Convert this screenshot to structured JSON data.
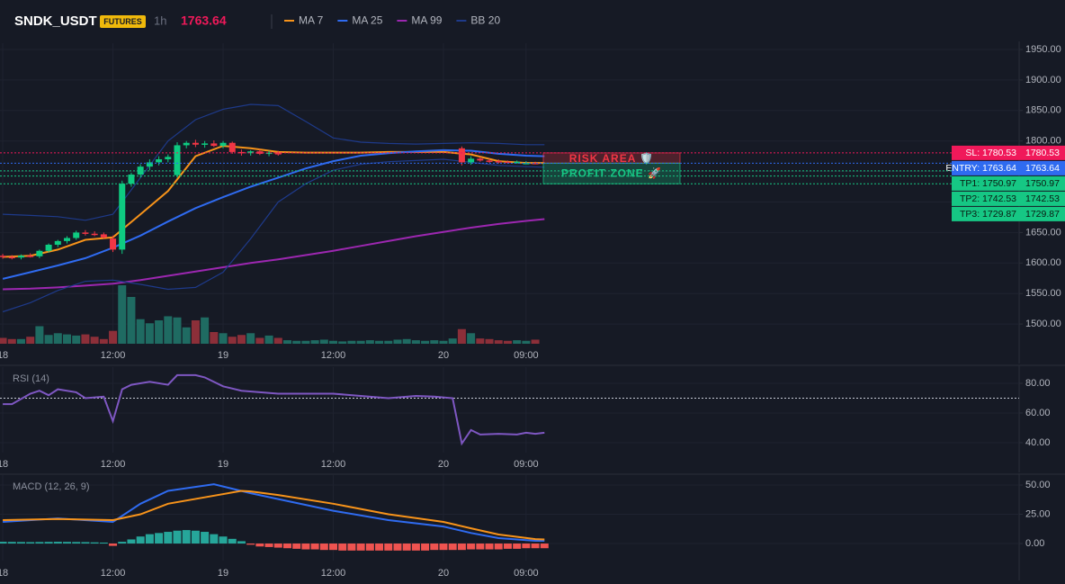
{
  "header": {
    "symbol": "SNDK_USDT",
    "badge": "FUTURES",
    "interval": "1h",
    "price": 1763.64
  },
  "chart_data": [
    {
      "type": "candlestick",
      "xlim": [
        -0.3,
        110.7
      ],
      "xticks": [
        {
          "value": 0,
          "label": "18"
        },
        {
          "value": 12,
          "label": "12:00"
        },
        {
          "value": 24,
          "label": "19"
        },
        {
          "value": 36,
          "label": "12:00"
        },
        {
          "value": 48,
          "label": "20"
        },
        {
          "value": 57,
          "label": "09:00"
        }
      ],
      "ylim": [
        1467.7,
        1960.3
      ],
      "yticks": [
        {
          "value": 1950,
          "label": "1950.00"
        },
        {
          "value": 1900,
          "label": "1900.00"
        },
        {
          "value": 1850,
          "label": "1850.00"
        },
        {
          "value": 1800,
          "label": "1800.00"
        },
        {
          "value": 1750,
          "label": "1750.00"
        },
        {
          "value": 1700,
          "label": "1700.00"
        },
        {
          "value": 1650,
          "label": "1650.00"
        },
        {
          "value": 1600,
          "label": "1600.00"
        },
        {
          "value": 1550,
          "label": "1550.00"
        },
        {
          "value": 1500,
          "label": "1500.00"
        }
      ],
      "grid": true,
      "up_color": "#0ecb81",
      "down_color": "#f23645",
      "x": [
        0,
        1,
        2,
        3,
        4,
        5,
        6,
        7,
        8,
        9,
        10,
        11,
        12,
        13,
        14,
        15,
        16,
        17,
        18,
        19,
        20,
        21,
        22,
        23,
        24,
        25,
        26,
        27,
        28,
        29,
        30,
        50,
        51,
        52,
        53,
        54,
        55,
        56,
        57,
        58
      ],
      "open": [
        1612,
        1610,
        1609,
        1612,
        1611,
        1620,
        1630,
        1636,
        1641,
        1650,
        1648,
        1647,
        1640,
        1622,
        1730,
        1745,
        1758,
        1765,
        1770,
        1744,
        1793,
        1797,
        1794,
        1796,
        1792,
        1797,
        1782,
        1780,
        1783,
        1779,
        1781,
        1788,
        1765,
        1771,
        1768,
        1767,
        1766,
        1765,
        1764,
        1764
      ],
      "high": [
        1615,
        1613,
        1614,
        1616,
        1622,
        1632,
        1638,
        1644,
        1653,
        1654,
        1652,
        1650,
        1645,
        1735,
        1748,
        1762,
        1770,
        1775,
        1778,
        1798,
        1800,
        1802,
        1800,
        1801,
        1800,
        1799,
        1786,
        1785,
        1786,
        1784,
        1784,
        1791,
        1775,
        1774,
        1771,
        1770,
        1768,
        1768,
        1767,
        1766
      ],
      "low": [
        1607,
        1606,
        1606,
        1609,
        1608,
        1617,
        1626,
        1632,
        1638,
        1645,
        1644,
        1640,
        1618,
        1615,
        1725,
        1740,
        1752,
        1760,
        1765,
        1740,
        1788,
        1790,
        1789,
        1790,
        1788,
        1779,
        1776,
        1776,
        1777,
        1775,
        1776,
        1760,
        1761,
        1766,
        1764,
        1763,
        1763,
        1763,
        1762,
        1762
      ],
      "close": [
        1610,
        1609,
        1612,
        1611,
        1620,
        1630,
        1636,
        1641,
        1650,
        1648,
        1647,
        1642,
        1622,
        1730,
        1745,
        1758,
        1765,
        1770,
        1774,
        1793,
        1797,
        1794,
        1796,
        1792,
        1797,
        1782,
        1780,
        1783,
        1779,
        1781,
        1778,
        1765,
        1771,
        1768,
        1767,
        1766,
        1765,
        1766,
        1764,
        1763.64
      ],
      "volume": {
        "up_color": "#1f6b62",
        "down_color": "#8c2f39",
        "x": [
          0,
          1,
          2,
          3,
          4,
          5,
          6,
          7,
          8,
          9,
          10,
          11,
          12,
          13,
          14,
          15,
          16,
          17,
          18,
          19,
          20,
          21,
          22,
          23,
          24,
          25,
          26,
          27,
          28,
          29,
          30,
          31,
          32,
          33,
          34,
          35,
          36,
          37,
          38,
          39,
          40,
          41,
          42,
          43,
          44,
          45,
          46,
          47,
          48,
          49,
          50,
          51,
          52,
          53,
          54,
          55,
          56,
          57,
          58
        ],
        "values": [
          10,
          8,
          8,
          12,
          30,
          15,
          18,
          16,
          14,
          16,
          12,
          8,
          22,
          100,
          80,
          42,
          35,
          40,
          47,
          45,
          28,
          40,
          45,
          20,
          18,
          12,
          15,
          18,
          10,
          14,
          10,
          6,
          5,
          5,
          6,
          7,
          5,
          4,
          5,
          5,
          6,
          5,
          5,
          7,
          8,
          6,
          5,
          6,
          5,
          9,
          25,
          18,
          9,
          8,
          6,
          5,
          6,
          5,
          7
        ]
      },
      "series": [
        {
          "name": "MA 7",
          "color": "#f7931a",
          "x": [
            0,
            3,
            6,
            9,
            12,
            15,
            18,
            21,
            24,
            27,
            30,
            33,
            36,
            39,
            42,
            45,
            48,
            51,
            54,
            57,
            59
          ],
          "values": [
            1610,
            1612,
            1622,
            1638,
            1642,
            1680,
            1718,
            1775,
            1792,
            1788,
            1782,
            1781,
            1781,
            1781,
            1782,
            1782,
            1782,
            1778,
            1767,
            1764,
            1764
          ]
        },
        {
          "name": "MA 25",
          "color": "#2f6bf0",
          "x": [
            0,
            3,
            6,
            9,
            12,
            15,
            18,
            21,
            24,
            27,
            30,
            33,
            36,
            39,
            42,
            45,
            48,
            51,
            54,
            57,
            59
          ],
          "values": [
            1574,
            1585,
            1596,
            1608,
            1625,
            1645,
            1668,
            1690,
            1708,
            1725,
            1740,
            1755,
            1767,
            1776,
            1780,
            1783,
            1785,
            1784,
            1779,
            1776,
            1775
          ]
        },
        {
          "name": "MA 99",
          "color": "#9c27b0",
          "x": [
            0,
            3,
            6,
            9,
            12,
            15,
            18,
            21,
            24,
            27,
            30,
            33,
            36,
            39,
            42,
            45,
            48,
            51,
            54,
            57,
            59
          ],
          "values": [
            1557,
            1558,
            1560,
            1563,
            1566,
            1572,
            1579,
            1586,
            1593,
            1600,
            1606,
            1613,
            1620,
            1628,
            1636,
            1644,
            1651,
            1658,
            1664,
            1669,
            1672
          ]
        },
        {
          "name": "BB 20",
          "color": "#1e3a8a",
          "x": [
            0,
            3,
            6,
            9,
            12,
            15,
            18,
            21,
            24,
            27,
            30,
            33,
            36,
            39,
            42,
            45,
            48,
            51,
            54,
            57,
            59
          ],
          "upper": [
            1680,
            1678,
            1676,
            1670,
            1680,
            1740,
            1800,
            1835,
            1852,
            1860,
            1858,
            1832,
            1805,
            1798,
            1796,
            1795,
            1796,
            1797,
            1796,
            1794,
            1794
          ],
          "lower": [
            1520,
            1535,
            1555,
            1570,
            1572,
            1565,
            1557,
            1560,
            1585,
            1640,
            1700,
            1730,
            1752,
            1762,
            1766,
            1768,
            1770,
            1765,
            1760,
            1758,
            1757
          ]
        }
      ],
      "levels": [
        {
          "label": "SL: 1780.53",
          "value": 1780.53,
          "color": "#f0195a",
          "text_color": "#ffffff"
        },
        {
          "label": "ENTRY: 1763.64",
          "value": 1763.64,
          "color": "#2f6bf0",
          "text_color": "#ffffff"
        },
        {
          "label": "TP1: 1750.97",
          "value": 1750.97,
          "color": "#16c784",
          "text_color": "#0b1a12"
        },
        {
          "label": "TP2: 1742.53",
          "value": 1742.53,
          "color": "#16c784",
          "text_color": "#0b1a12"
        },
        {
          "label": "TP3: 1729.87",
          "value": 1729.87,
          "color": "#16c784",
          "text_color": "#0b1a12"
        }
      ],
      "zones": [
        {
          "label": "RISK AREA 🛡️",
          "color": "#f23645"
        },
        {
          "label": "PROFIT ZONE 🚀",
          "color": "#16c784"
        }
      ]
    },
    {
      "type": "line",
      "title": "RSI (14)",
      "xlim": [
        -0.3,
        110.7
      ],
      "xticks": [
        {
          "value": 0,
          "label": "18"
        },
        {
          "value": 12,
          "label": "12:00"
        },
        {
          "value": 24,
          "label": "19"
        },
        {
          "value": 36,
          "label": "12:00"
        },
        {
          "value": 48,
          "label": "20"
        },
        {
          "value": 57,
          "label": "09:00"
        }
      ],
      "ylim": [
        33.3,
        90.9
      ],
      "yticks": [
        {
          "value": 80,
          "label": "80.00"
        },
        {
          "value": 60,
          "label": "60.00"
        },
        {
          "value": 40,
          "label": "40.00"
        }
      ],
      "reference": 70,
      "series": [
        {
          "color": "#7e57c2",
          "x": [
            0,
            1,
            3,
            4,
            5,
            6,
            8,
            9,
            11,
            12,
            13,
            14,
            16,
            18,
            19,
            21,
            22,
            24,
            26,
            28,
            30,
            33,
            36,
            39,
            42,
            45,
            47,
            49,
            50,
            51,
            52,
            54,
            56,
            57,
            58,
            59
          ],
          "values": [
            66,
            66,
            73,
            75,
            72,
            76,
            74,
            70,
            71,
            54.5,
            76,
            79,
            81,
            79,
            85.5,
            85.5,
            84,
            78,
            75,
            74,
            73,
            73,
            73,
            71.5,
            70,
            71.5,
            71,
            70,
            39.4,
            48.5,
            45.5,
            46,
            45.5,
            46.7,
            46,
            46.7
          ]
        }
      ]
    },
    {
      "type": "macd",
      "title": "MACD (12, 26, 9)",
      "xlim": [
        -0.3,
        110.7
      ],
      "xticks": [
        {
          "value": 0,
          "label": "18"
        },
        {
          "value": 12,
          "label": "12:00"
        },
        {
          "value": 24,
          "label": "19"
        },
        {
          "value": 36,
          "label": "12:00"
        },
        {
          "value": 48,
          "label": "20"
        },
        {
          "value": 57,
          "label": "09:00"
        }
      ],
      "ylim": [
        -14.6,
        58.5
      ],
      "yticks": [
        {
          "value": 50,
          "label": "50.00"
        },
        {
          "value": 25,
          "label": "25.00"
        },
        {
          "value": 0,
          "label": "0.00"
        }
      ],
      "histogram": {
        "up_color": "#26a69a",
        "down_color": "#ef5350",
        "x": [
          0,
          1,
          2,
          3,
          4,
          5,
          6,
          7,
          8,
          9,
          10,
          11,
          12,
          13,
          14,
          15,
          16,
          17,
          18,
          19,
          20,
          21,
          22,
          23,
          24,
          25,
          26,
          27,
          28,
          29,
          30,
          31,
          32,
          33,
          34,
          35,
          36,
          37,
          38,
          39,
          40,
          41,
          42,
          43,
          44,
          45,
          46,
          47,
          48,
          49,
          50,
          51,
          52,
          53,
          54,
          55,
          56,
          57,
          58,
          59
        ],
        "values": [
          1.5,
          1.4,
          1.3,
          1.2,
          1.3,
          1.4,
          1.5,
          1.4,
          1.3,
          1.2,
          1.0,
          0.8,
          -2,
          1.5,
          3.5,
          6,
          8,
          9,
          10,
          11,
          11.5,
          11,
          10,
          8,
          6,
          4,
          2,
          -1,
          -2.5,
          -3,
          -3.5,
          -4,
          -4.5,
          -5,
          -5,
          -5.5,
          -5.5,
          -6,
          -6,
          -6,
          -6,
          -6,
          -6,
          -6,
          -6,
          -6,
          -6,
          -5.5,
          -5.5,
          -5.5,
          -5.5,
          -5,
          -5,
          -5,
          -5,
          -4.5,
          -4.5,
          -4,
          -4,
          -4
        ]
      },
      "series": [
        {
          "color": "#2f6bf0",
          "x": [
            0,
            6,
            12,
            15,
            18,
            23,
            27,
            30,
            36,
            42,
            48,
            51,
            54,
            58,
            59
          ],
          "values": [
            18.5,
            21.5,
            18.5,
            34,
            45,
            50.7,
            43,
            38,
            28,
            20,
            14.6,
            9,
            4.6,
            2.3,
            2.3
          ]
        },
        {
          "color": "#f7931a",
          "x": [
            0,
            6,
            12,
            15,
            18,
            26,
            27,
            30,
            36,
            42,
            48,
            51,
            54,
            58,
            59
          ],
          "values": [
            20,
            21,
            20,
            25,
            34,
            45,
            44.6,
            41.5,
            34,
            25,
            18.5,
            13,
            7.7,
            3.8,
            3.5
          ]
        }
      ]
    }
  ]
}
